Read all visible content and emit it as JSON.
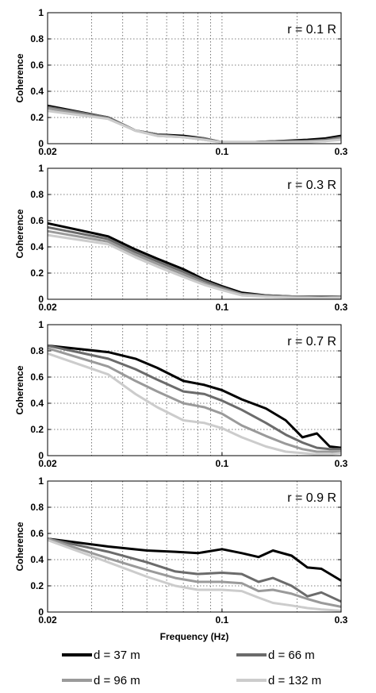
{
  "figure": {
    "xlabel": "Frequency (Hz)",
    "ylabel": "Coherence",
    "series_colors": [
      "#000000",
      "#6b6b6b",
      "#9a9a9a",
      "#cccccc"
    ],
    "legend": [
      {
        "label": "d = 37 m",
        "color": "#000000"
      },
      {
        "label": "d = 66 m",
        "color": "#6b6b6b"
      },
      {
        "label": "d = 96 m",
        "color": "#9a9a9a"
      },
      {
        "label": "d = 132 m",
        "color": "#cccccc"
      }
    ],
    "legend_placement": "below"
  },
  "chart_data": [
    {
      "type": "line",
      "annotation": "r = 0.1 R",
      "xscale": "log",
      "xlim": [
        0.02,
        0.3
      ],
      "ylim": [
        0,
        1
      ],
      "xticks": [
        0.02,
        0.1,
        0.3
      ],
      "xticklabels": [
        "0.02",
        "0.1",
        "0.3"
      ],
      "yticks": [
        0,
        0.2,
        0.4,
        0.6,
        0.8,
        1
      ],
      "yticklabels": [
        "0",
        "0.2",
        "0.4",
        "0.6",
        "0.8",
        "1"
      ],
      "grid": true,
      "x": [
        0.02,
        0.035,
        0.045,
        0.055,
        0.07,
        0.085,
        0.1,
        0.13,
        0.17,
        0.22,
        0.26,
        0.3
      ],
      "series": [
        {
          "name": "d = 37 m",
          "values": [
            0.29,
            0.2,
            0.1,
            0.07,
            0.06,
            0.04,
            0.01,
            0.01,
            0.02,
            0.03,
            0.04,
            0.06
          ]
        },
        {
          "name": "d = 66 m",
          "values": [
            0.28,
            0.2,
            0.1,
            0.07,
            0.05,
            0.04,
            0.01,
            0.01,
            0.02,
            0.02,
            0.03,
            0.05
          ]
        },
        {
          "name": "d = 96 m",
          "values": [
            0.27,
            0.19,
            0.1,
            0.06,
            0.05,
            0.03,
            0.01,
            0.01,
            0.01,
            0.02,
            0.02,
            0.04
          ]
        },
        {
          "name": "d = 132 m",
          "values": [
            0.25,
            0.19,
            0.1,
            0.06,
            0.05,
            0.03,
            0.01,
            0.01,
            0.01,
            0.01,
            0.02,
            0.03
          ]
        }
      ]
    },
    {
      "type": "line",
      "annotation": "r = 0.3 R",
      "xscale": "log",
      "xlim": [
        0.02,
        0.3
      ],
      "ylim": [
        0,
        1
      ],
      "xticks": [
        0.02,
        0.1,
        0.3
      ],
      "xticklabels": [
        "0.02",
        "0.1",
        "0.3"
      ],
      "yticks": [
        0,
        0.2,
        0.4,
        0.6,
        0.8,
        1
      ],
      "yticklabels": [
        "0",
        "0.2",
        "0.4",
        "0.6",
        "0.8",
        "1"
      ],
      "grid": true,
      "x": [
        0.02,
        0.035,
        0.045,
        0.055,
        0.07,
        0.085,
        0.1,
        0.12,
        0.15,
        0.2,
        0.25,
        0.3
      ],
      "series": [
        {
          "name": "d = 37 m",
          "values": [
            0.58,
            0.48,
            0.38,
            0.31,
            0.23,
            0.15,
            0.1,
            0.05,
            0.03,
            0.02,
            0.02,
            0.02
          ]
        },
        {
          "name": "d = 66 m",
          "values": [
            0.55,
            0.46,
            0.36,
            0.29,
            0.21,
            0.14,
            0.09,
            0.04,
            0.03,
            0.02,
            0.02,
            0.02
          ]
        },
        {
          "name": "d = 96 m",
          "values": [
            0.52,
            0.44,
            0.34,
            0.27,
            0.19,
            0.12,
            0.08,
            0.04,
            0.02,
            0.02,
            0.01,
            0.02
          ]
        },
        {
          "name": "d = 132 m",
          "values": [
            0.49,
            0.42,
            0.32,
            0.25,
            0.17,
            0.11,
            0.07,
            0.03,
            0.02,
            0.01,
            0.01,
            0.01
          ]
        }
      ]
    },
    {
      "type": "line",
      "annotation": "r = 0.7 R",
      "xscale": "log",
      "xlim": [
        0.02,
        0.3
      ],
      "ylim": [
        0,
        1
      ],
      "xticks": [
        0.02,
        0.1,
        0.3
      ],
      "xticklabels": [
        "0.02",
        "0.1",
        "0.3"
      ],
      "yticks": [
        0,
        0.2,
        0.4,
        0.6,
        0.8,
        1
      ],
      "yticklabels": [
        "0",
        "0.2",
        "0.4",
        "0.6",
        "0.8",
        "1"
      ],
      "grid": true,
      "x": [
        0.02,
        0.035,
        0.045,
        0.055,
        0.07,
        0.085,
        0.1,
        0.12,
        0.15,
        0.18,
        0.21,
        0.24,
        0.27,
        0.3
      ],
      "series": [
        {
          "name": "d = 37 m",
          "values": [
            0.84,
            0.79,
            0.74,
            0.67,
            0.57,
            0.54,
            0.5,
            0.43,
            0.36,
            0.27,
            0.14,
            0.17,
            0.07,
            0.06
          ]
        },
        {
          "name": "d = 66 m",
          "values": [
            0.84,
            0.74,
            0.66,
            0.58,
            0.49,
            0.47,
            0.42,
            0.35,
            0.25,
            0.16,
            0.1,
            0.06,
            0.05,
            0.05
          ]
        },
        {
          "name": "d = 96 m",
          "values": [
            0.82,
            0.68,
            0.57,
            0.49,
            0.4,
            0.37,
            0.32,
            0.23,
            0.15,
            0.09,
            0.05,
            0.03,
            0.03,
            0.03
          ]
        },
        {
          "name": "d = 132 m",
          "values": [
            0.78,
            0.62,
            0.47,
            0.37,
            0.27,
            0.25,
            0.21,
            0.14,
            0.07,
            0.03,
            0.02,
            0.01,
            0.01,
            0.02
          ]
        }
      ]
    },
    {
      "type": "line",
      "annotation": "r = 0.9 R",
      "xscale": "log",
      "xlim": [
        0.02,
        0.3
      ],
      "ylim": [
        0,
        1
      ],
      "xticks": [
        0.02,
        0.1,
        0.3
      ],
      "xticklabels": [
        "0.02",
        "0.1",
        "0.3"
      ],
      "yticks": [
        0,
        0.2,
        0.4,
        0.6,
        0.8,
        1
      ],
      "yticklabels": [
        "0",
        "0.2",
        "0.4",
        "0.6",
        "0.8",
        "1"
      ],
      "grid": true,
      "x": [
        0.02,
        0.035,
        0.05,
        0.065,
        0.08,
        0.1,
        0.12,
        0.14,
        0.16,
        0.19,
        0.22,
        0.25,
        0.3
      ],
      "series": [
        {
          "name": "d = 37 m",
          "values": [
            0.56,
            0.5,
            0.47,
            0.46,
            0.45,
            0.48,
            0.45,
            0.42,
            0.47,
            0.43,
            0.34,
            0.33,
            0.24
          ]
        },
        {
          "name": "d = 66 m",
          "values": [
            0.56,
            0.46,
            0.38,
            0.31,
            0.29,
            0.3,
            0.29,
            0.23,
            0.26,
            0.2,
            0.12,
            0.15,
            0.08
          ]
        },
        {
          "name": "d = 96 m",
          "values": [
            0.56,
            0.41,
            0.32,
            0.26,
            0.23,
            0.23,
            0.22,
            0.16,
            0.17,
            0.14,
            0.1,
            0.07,
            0.04
          ]
        },
        {
          "name": "d = 132 m",
          "values": [
            0.55,
            0.38,
            0.27,
            0.2,
            0.17,
            0.17,
            0.16,
            0.11,
            0.07,
            0.05,
            0.03,
            0.02,
            0.01
          ]
        }
      ]
    }
  ]
}
